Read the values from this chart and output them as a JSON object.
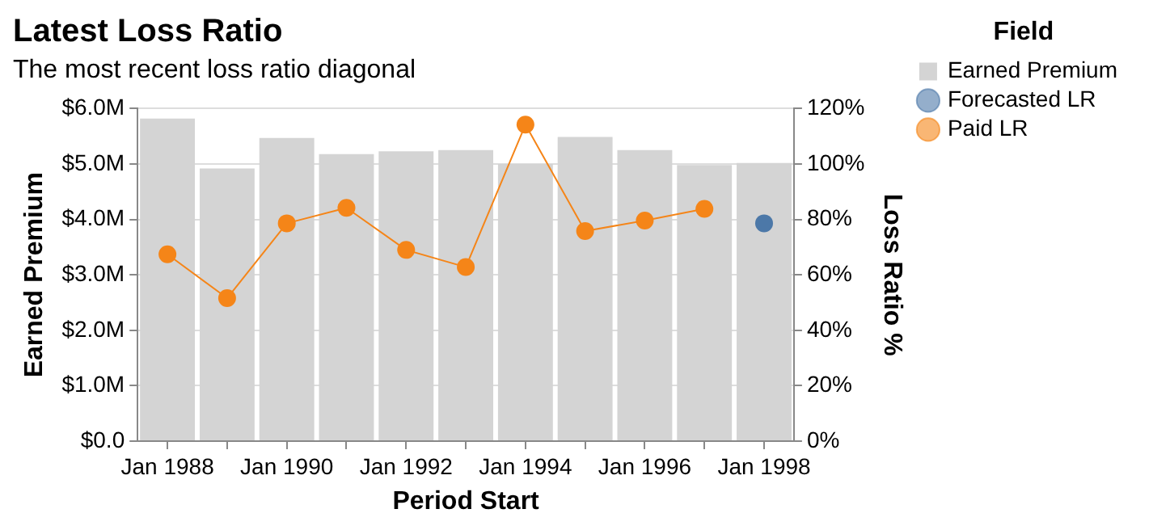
{
  "chart_data": {
    "type": "bar",
    "title": "Latest Loss Ratio",
    "subtitle": "The most recent loss ratio diagonal",
    "xlabel": "Period Start",
    "ylabel": "Earned Premium",
    "y2label": "Loss Ratio %",
    "legend_title": "Field",
    "categories": [
      "Jan 1988",
      null,
      "Jan 1990",
      null,
      "Jan 1992",
      null,
      "Jan 1994",
      null,
      "Jan 1996",
      null,
      "Jan 1998"
    ],
    "series": [
      {
        "name": "Earned Premium",
        "color": "#d4d4d4",
        "values": [
          5.82,
          4.92,
          5.47,
          5.18,
          5.23,
          5.25,
          5.0,
          5.49,
          5.25,
          4.98,
          5.02
        ]
      },
      {
        "name": "Forecasted LR",
        "type": "scatter",
        "axis": "y2",
        "color": "#4c78a8",
        "values": [
          null,
          null,
          null,
          null,
          null,
          null,
          null,
          null,
          null,
          null,
          78.6
        ]
      },
      {
        "name": "Paid LR",
        "type": "line",
        "axis": "y2",
        "color": "#f58518",
        "values": [
          67.4,
          51.6,
          78.6,
          84.2,
          69.0,
          62.8,
          114.2,
          75.8,
          79.6,
          83.8,
          null
        ]
      }
    ],
    "ylim": [
      0,
      6
    ],
    "yticks": [
      {
        "value": 0,
        "label": "$0.0"
      },
      {
        "value": 1,
        "label": "$1.0M"
      },
      {
        "value": 2,
        "label": "$2.0M"
      },
      {
        "value": 3,
        "label": "$3.0M"
      },
      {
        "value": 4,
        "label": "$4.0M"
      },
      {
        "value": 5,
        "label": "$5.0M"
      },
      {
        "value": 6,
        "label": "$6.0M"
      }
    ],
    "y2lim": [
      0,
      120
    ],
    "y2ticks": [
      {
        "value": 0,
        "label": "0%"
      },
      {
        "value": 20,
        "label": "20%"
      },
      {
        "value": 40,
        "label": "40%"
      },
      {
        "value": 60,
        "label": "60%"
      },
      {
        "value": 80,
        "label": "80%"
      },
      {
        "value": 100,
        "label": "100%"
      },
      {
        "value": 120,
        "label": "120%"
      }
    ],
    "grid": "y",
    "legend": "right",
    "marker": "circle",
    "line_style": "solid"
  }
}
